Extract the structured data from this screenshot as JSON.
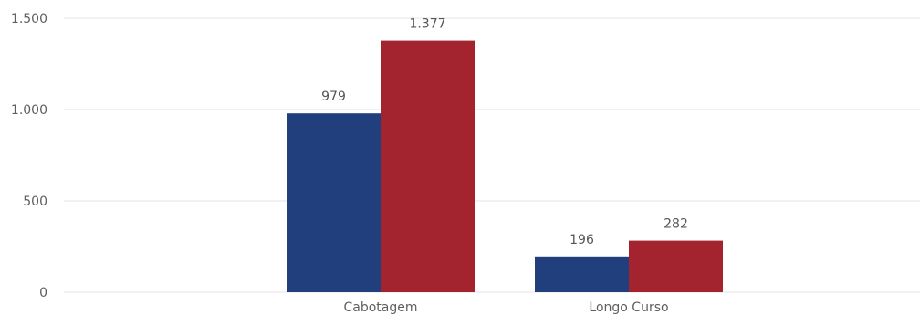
{
  "chart_data": {
    "type": "bar",
    "categories": [
      "Cabotagem",
      "Longo Curso"
    ],
    "series": [
      {
        "values": [
          979,
          196
        ],
        "color": "#203f7c"
      },
      {
        "values": [
          1377,
          282
        ],
        "color": "#a3232f"
      }
    ],
    "value_labels": [
      [
        "979",
        "196"
      ],
      [
        "1.377",
        "282"
      ]
    ],
    "y_ticks": [
      0,
      500,
      1000,
      1500
    ],
    "y_tick_labels": [
      "0",
      "500",
      "1.000",
      "1.500"
    ],
    "ylim": [
      0,
      1500
    ],
    "grid": true,
    "legend": "none",
    "title": "",
    "xlabel": "",
    "ylabel": ""
  }
}
